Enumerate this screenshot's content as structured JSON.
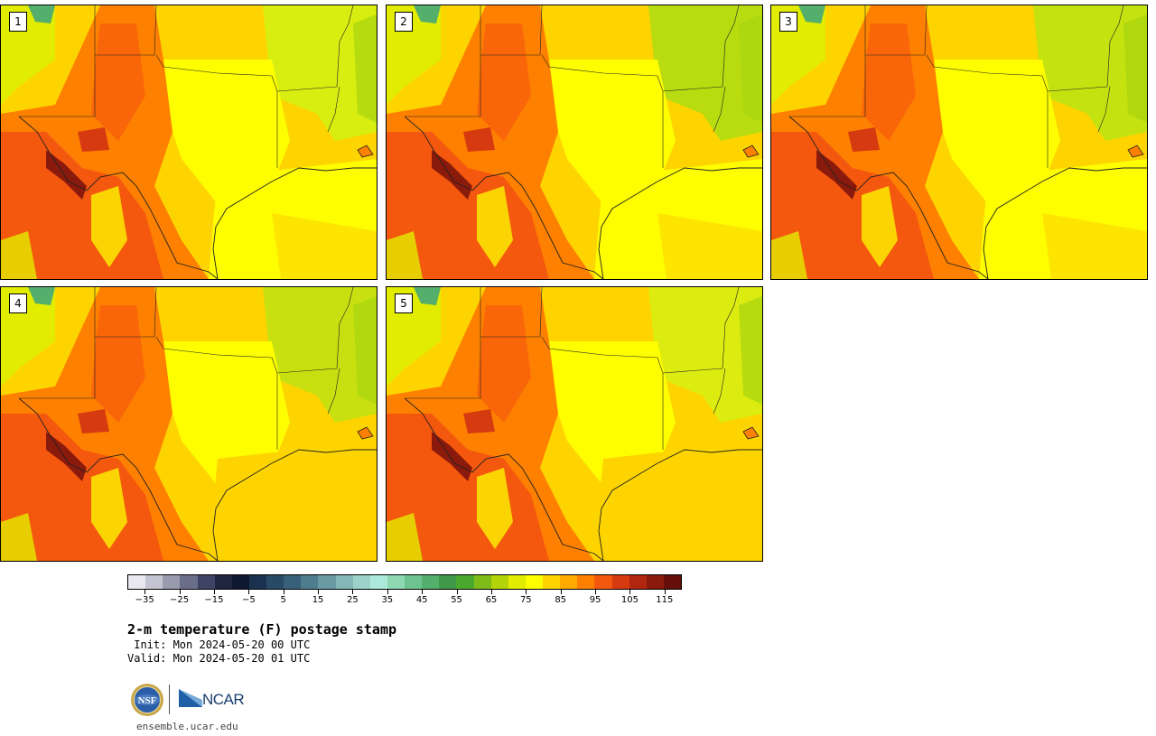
{
  "panels": [
    {
      "label": "1"
    },
    {
      "label": "2"
    },
    {
      "label": "3"
    },
    {
      "label": "4"
    },
    {
      "label": "5"
    }
  ],
  "colorbar": {
    "colors": [
      "#e8e8ee",
      "#c4c4d2",
      "#9a9aae",
      "#6a6e88",
      "#3e4466",
      "#1e2640",
      "#0e1830",
      "#1a3250",
      "#284a66",
      "#38607a",
      "#4e7e8e",
      "#6a9aa4",
      "#84b8b8",
      "#9cd2ca",
      "#aeeadc",
      "#8ed8b2",
      "#6ec490",
      "#54ae6c",
      "#3e9a48",
      "#4aa82e",
      "#7ebc1a",
      "#b4d40a",
      "#e2ec00",
      "#fefe00",
      "#fed400",
      "#feaa00",
      "#fe8000",
      "#f4580e",
      "#d63a10",
      "#b0260e",
      "#8a1a0c",
      "#641008"
    ],
    "tick_labels": [
      "−35",
      "−25",
      "−15",
      "−5",
      "5",
      "15",
      "25",
      "35",
      "45",
      "55",
      "65",
      "75",
      "85",
      "95",
      "105",
      "115"
    ],
    "min": -40,
    "max": 120
  },
  "title": "2-m temperature (F) postage stamp",
  "init_line": " Init: Mon 2024-05-20 00 UTC",
  "valid_line": "Valid: Mon 2024-05-20 01 UTC",
  "logos": {
    "nsf_text": "NSF",
    "ncar_text": "NCAR"
  },
  "footer_url": "ensemble.ucar.edu"
}
